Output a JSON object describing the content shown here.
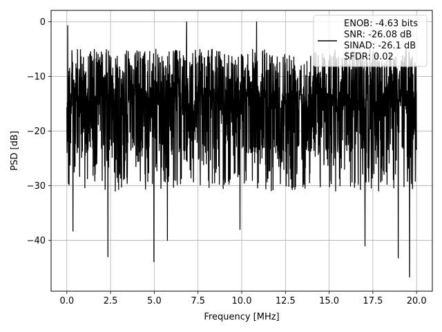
{
  "chart_data": {
    "type": "line",
    "xlabel": "Frequency [MHz]",
    "ylabel": "PSD [dB]",
    "xlim": [
      -0.9,
      20.9
    ],
    "ylim": [
      -49.3,
      2.1
    ],
    "xticks": [
      0.0,
      2.5,
      5.0,
      7.5,
      10.0,
      12.5,
      15.0,
      17.5,
      20.0
    ],
    "xtick_labels": [
      "0.0",
      "2.5",
      "5.0",
      "7.5",
      "10.0",
      "12.5",
      "15.0",
      "17.5",
      "20.0"
    ],
    "yticks": [
      0,
      -10,
      -20,
      -30,
      -40
    ],
    "ytick_labels": [
      "0",
      "−10",
      "−20",
      "−30",
      "−40"
    ],
    "grid": true,
    "legend_position": "top-right",
    "series": [
      {
        "name": "ENOB: -4.63 bits\nSNR: -26.08 dB\nSINAD: -26.1 dB\nSFDR: 0.02",
        "color": "#000000",
        "x_range": [
          0,
          20
        ],
        "noise_band": {
          "upper_min": -8,
          "upper_max": -5,
          "lower_typ": -27,
          "lower_min": -46
        },
        "notable_points": [
          {
            "x": 0.05,
            "y": -0.7
          },
          {
            "x": 0.35,
            "y": -38.3
          },
          {
            "x": 2.35,
            "y": -43.0
          },
          {
            "x": 4.98,
            "y": -43.9
          },
          {
            "x": 5.75,
            "y": -40.0
          },
          {
            "x": 6.85,
            "y": 0.0
          },
          {
            "x": 9.9,
            "y": -38.0
          },
          {
            "x": 10.85,
            "y": 0.0
          },
          {
            "x": 17.05,
            "y": -41.0
          },
          {
            "x": 18.95,
            "y": -43.2
          },
          {
            "x": 19.6,
            "y": -46.7
          }
        ]
      }
    ]
  }
}
